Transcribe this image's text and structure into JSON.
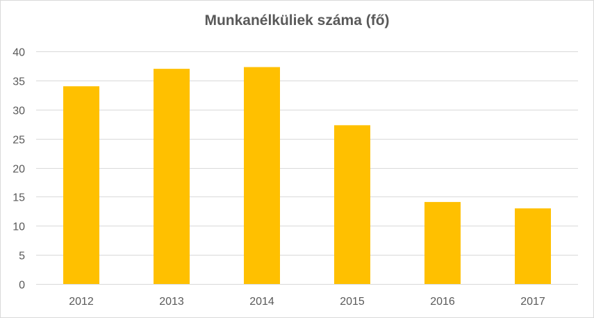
{
  "chart_data": {
    "type": "bar",
    "title": "Munkanélküliek száma (fő)",
    "xlabel": "",
    "ylabel": "",
    "categories": [
      "2012",
      "2013",
      "2014",
      "2015",
      "2016",
      "2017"
    ],
    "values": [
      34,
      37,
      37.3,
      27.3,
      14.1,
      13
    ],
    "ylim": [
      0,
      40
    ],
    "yticks": [
      0,
      5,
      10,
      15,
      20,
      25,
      30,
      35,
      40
    ],
    "grid": true,
    "legend": "none",
    "colors": {
      "bar": "#FFC000",
      "grid": "#d9d9d9",
      "text": "#595959"
    }
  }
}
